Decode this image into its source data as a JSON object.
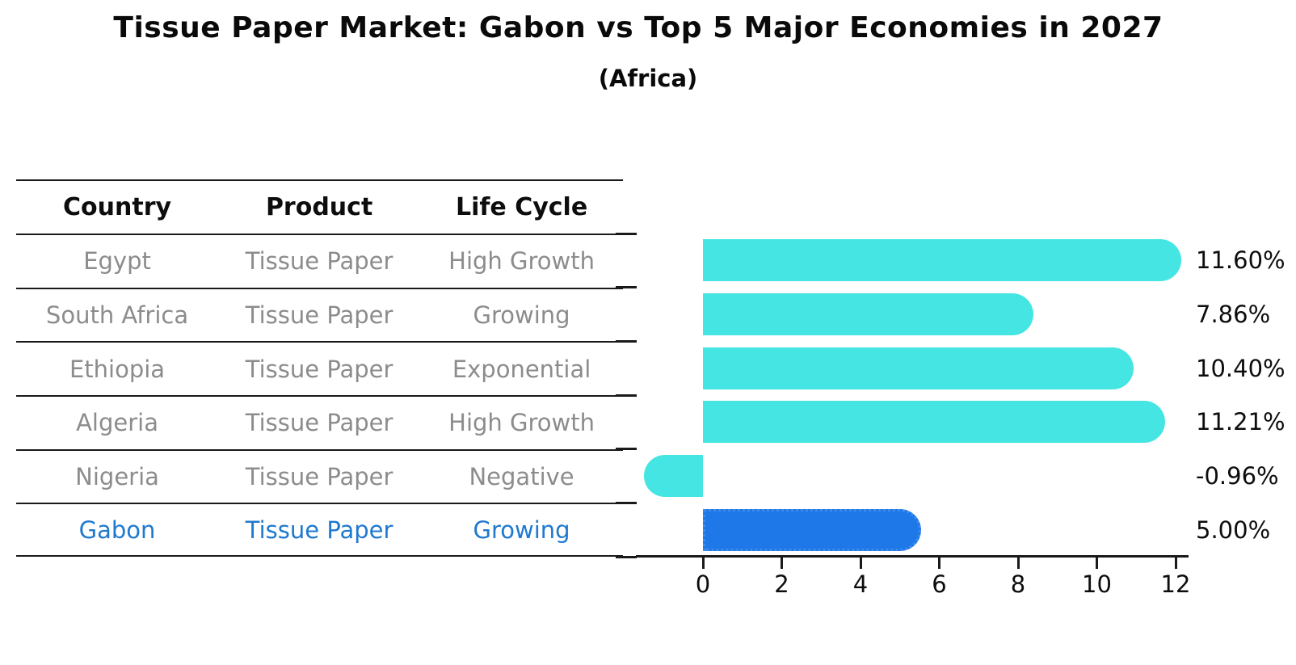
{
  "header": {
    "title": "Tissue Paper Market: Gabon vs Top 5 Major Economies in 2027",
    "subtitle": "(Africa)"
  },
  "table": {
    "headers": [
      "Country",
      "Product",
      "Life Cycle"
    ],
    "rows": [
      {
        "country": "Egypt",
        "product": "Tissue Paper",
        "life_cycle": "High Growth",
        "highlight": false
      },
      {
        "country": "South Africa",
        "product": "Tissue Paper",
        "life_cycle": "Growing",
        "highlight": false
      },
      {
        "country": "Ethiopia",
        "product": "Tissue Paper",
        "life_cycle": "Exponential",
        "highlight": false
      },
      {
        "country": "Algeria",
        "product": "Tissue Paper",
        "life_cycle": "High Growth",
        "highlight": false
      },
      {
        "country": "Nigeria",
        "product": "Tissue Paper",
        "life_cycle": "Negative",
        "highlight": false
      },
      {
        "country": "Gabon",
        "product": "Tissue Paper",
        "life_cycle": "Growing",
        "highlight": true
      }
    ]
  },
  "chart_data": {
    "type": "bar",
    "orientation": "horizontal",
    "title": "Tissue Paper Market: Gabon vs Top 5 Major Economies in 2027",
    "subtitle": "(Africa)",
    "categories": [
      "Egypt",
      "South Africa",
      "Ethiopia",
      "Algeria",
      "Nigeria",
      "Gabon"
    ],
    "values": [
      11.6,
      7.86,
      10.4,
      11.21,
      -0.96,
      5.0
    ],
    "value_labels": [
      "11.60%",
      "7.86%",
      "10.40%",
      "11.21%",
      "-0.96%",
      "5.00%"
    ],
    "x_ticks": [
      0,
      2,
      4,
      6,
      8,
      10,
      12
    ],
    "xlim": [
      -1.7,
      12.33
    ],
    "grid": false,
    "legend": null,
    "bar_color": "#44e5e2",
    "highlight_color": "#1e78e8",
    "highlight_index": 5
  },
  "colors": {
    "highlight_text": "#1f79ce",
    "table_text": "#8c8c8c",
    "axis": "#1a1a1a"
  }
}
